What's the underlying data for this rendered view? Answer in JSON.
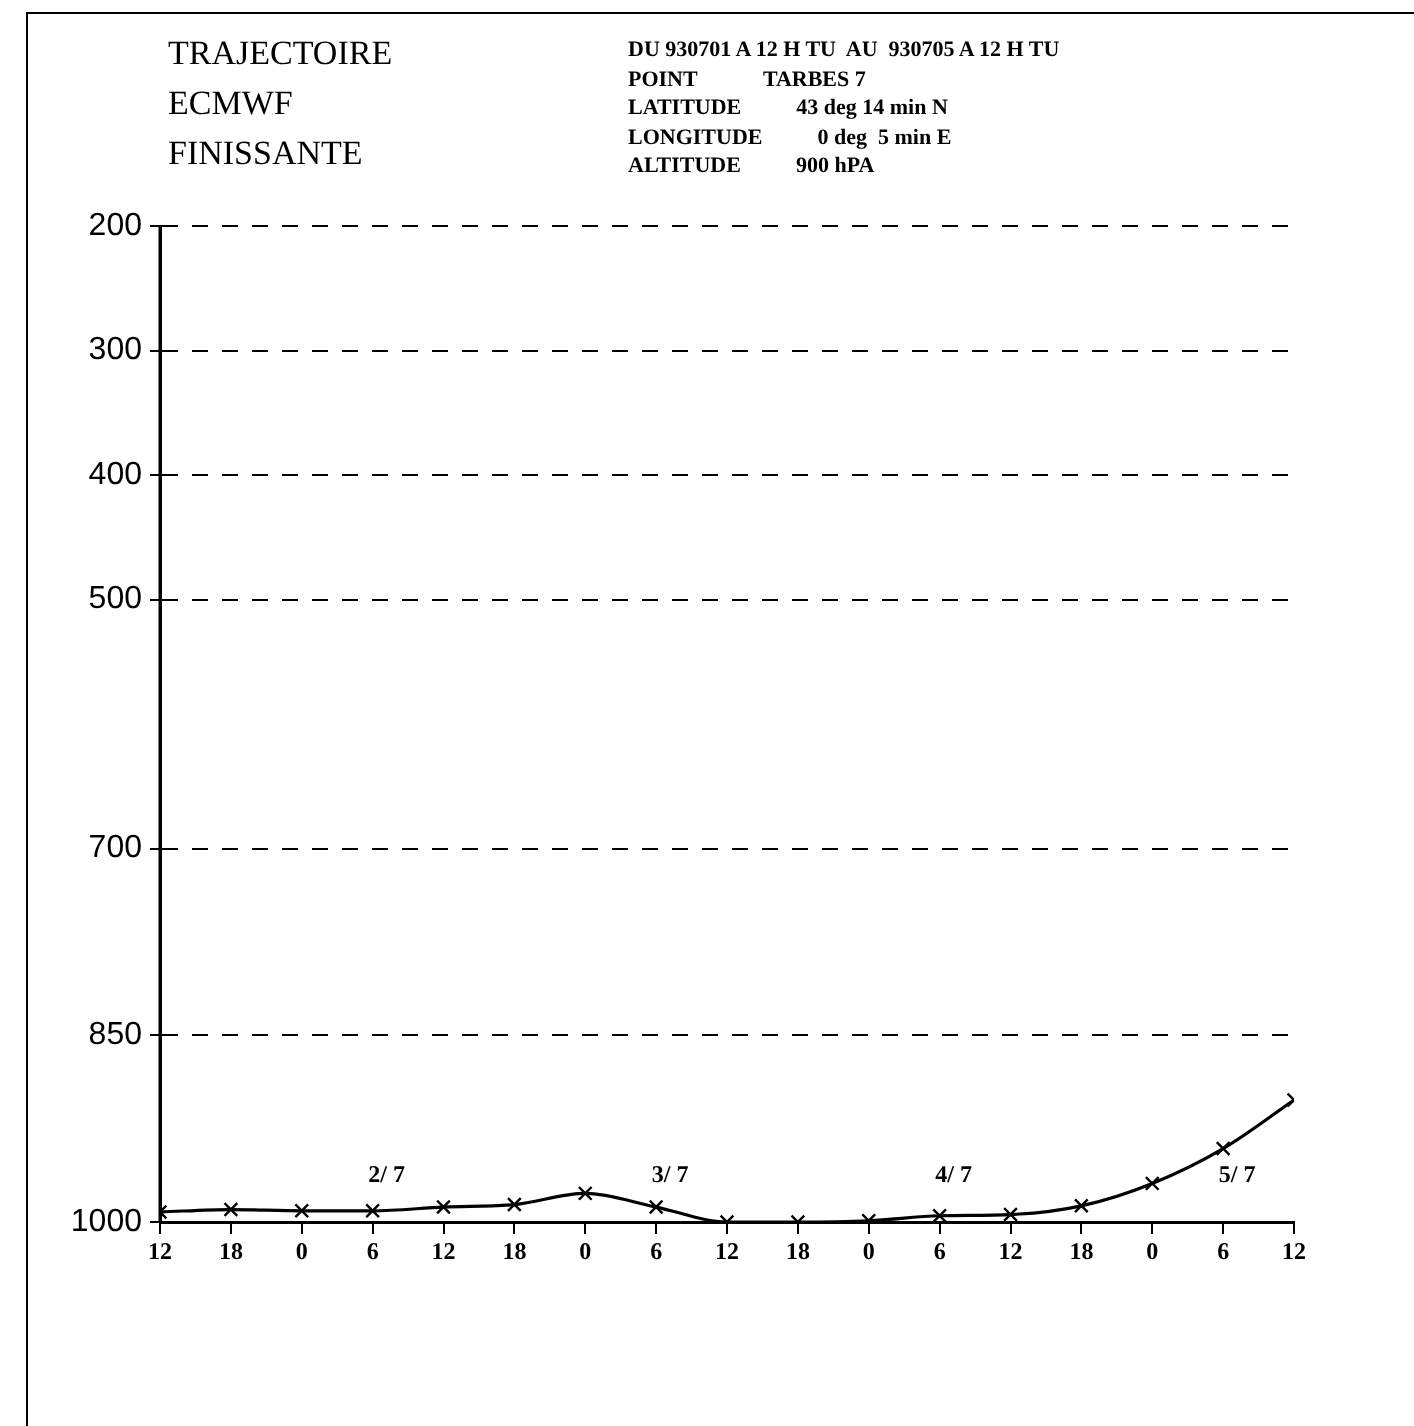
{
  "chart_data": {
    "type": "line",
    "title": "TRAJECTOIRE ECMWF FINISSANTE",
    "subtitle": "DU 930701 A 12 H TU  AU  930705 A 12 H TU",
    "annotations": [
      "POINT            TARBES 7",
      "LATITUDE          43 deg 14 min N",
      "LONGITUDE          0 deg  5 min E",
      "ALTITUDE          900 hPA",
      "2/ 7",
      "3/ 7",
      "4/ 7",
      "5/ 7"
    ],
    "x": [
      "--07-01T12:00",
      "--07-01T18:00",
      "--07-02T00:00",
      "--07-02T06:00",
      "--07-02T12:00",
      "--07-02T18:00",
      "--07-03T00:00",
      "--07-03T06:00",
      "--07-03T12:00",
      "--07-03T18:00",
      "--07-04T00:00",
      "--07-04T06:00",
      "--07-04T12:00",
      "--07-04T18:00",
      "--07-05T00:00",
      "--07-05T06:00",
      "--07-05T12:00"
    ],
    "values": [
      992,
      990,
      991,
      991,
      988,
      986,
      977,
      988,
      1000,
      1000,
      999,
      995,
      994,
      987,
      969,
      941,
      902
    ],
    "color": "#000000",
    "marker": "cross",
    "line_style": "solid",
    "xlim": [
      "--07-01T12:00",
      "--07-05T12:00"
    ],
    "xticks": [
      {
        "value": "--07-01T12:00",
        "label": "12"
      },
      {
        "value": "--07-01T18:00",
        "label": "18"
      },
      {
        "value": "--07-02T00:00",
        "label": "0"
      },
      {
        "value": "--07-02T06:00",
        "label": "6"
      },
      {
        "value": "--07-02T12:00",
        "label": "12"
      },
      {
        "value": "--07-02T18:00",
        "label": "18"
      },
      {
        "value": "--07-03T00:00",
        "label": "0"
      },
      {
        "value": "--07-03T06:00",
        "label": "6"
      },
      {
        "value": "--07-03T12:00",
        "label": "12"
      },
      {
        "value": "--07-03T18:00",
        "label": "18"
      },
      {
        "value": "--07-04T00:00",
        "label": "0"
      },
      {
        "value": "--07-04T06:00",
        "label": "6"
      },
      {
        "value": "--07-04T12:00",
        "label": "12"
      },
      {
        "value": "--07-04T18:00",
        "label": "18"
      },
      {
        "value": "--07-05T00:00",
        "label": "0"
      },
      {
        "value": "--07-05T06:00",
        "label": "6"
      },
      {
        "value": "--07-05T12:00",
        "label": "12"
      }
    ],
    "ylim": [
      1000,
      200
    ],
    "yticks": [
      200,
      300,
      400,
      500,
      700,
      850,
      1000
    ],
    "grid": "y",
    "legend": false
  }
}
